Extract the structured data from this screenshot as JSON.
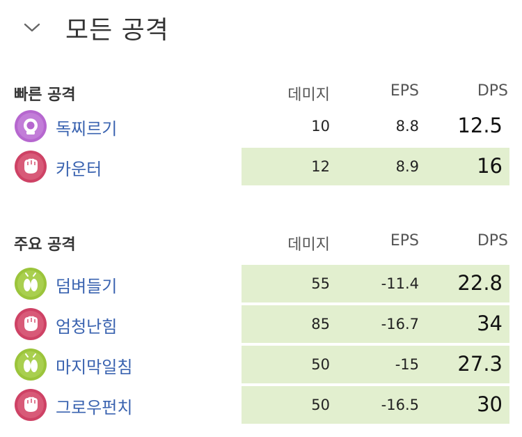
{
  "header": {
    "title": "모든 공격",
    "toggle_icon": "chevron-down-icon"
  },
  "fast": {
    "label": "빠른 공격",
    "col_damage": "데미지",
    "col_eps": "EPS",
    "col_dps": "DPS",
    "rows": [
      {
        "name": "독찌르기",
        "type_icon": "poison-type-icon",
        "type_color": "#b667cf",
        "damage": "10",
        "eps": "8.8",
        "dps": "12.5",
        "highlight": false
      },
      {
        "name": "카운터",
        "type_icon": "fighting-type-icon",
        "type_color": "#ce4265",
        "damage": "12",
        "eps": "8.9",
        "dps": "16",
        "highlight": true
      }
    ]
  },
  "charged": {
    "label": "주요 공격",
    "col_damage": "데미지",
    "col_eps": "EPS",
    "col_dps": "DPS",
    "rows": [
      {
        "name": "덤벼들기",
        "type_icon": "bug-type-icon",
        "type_color": "#9bc43b",
        "damage": "55",
        "eps": "-11.4",
        "dps": "22.8",
        "highlight": true
      },
      {
        "name": "엄청난힘",
        "type_icon": "fighting-type-icon",
        "type_color": "#ce4265",
        "damage": "85",
        "eps": "-16.7",
        "dps": "34",
        "highlight": true
      },
      {
        "name": "마지막일침",
        "type_icon": "bug-type-icon",
        "type_color": "#9bc43b",
        "damage": "50",
        "eps": "-15",
        "dps": "27.3",
        "highlight": true
      },
      {
        "name": "그로우펀치",
        "type_icon": "fighting-type-icon",
        "type_color": "#ce4265",
        "damage": "50",
        "eps": "-16.5",
        "dps": "30",
        "highlight": true
      }
    ]
  },
  "colors": {
    "highlight_bg": "#e2efcf",
    "link": "#3a63b0",
    "poison": "#b667cf",
    "fighting": "#ce4265",
    "bug": "#9bc43b"
  }
}
